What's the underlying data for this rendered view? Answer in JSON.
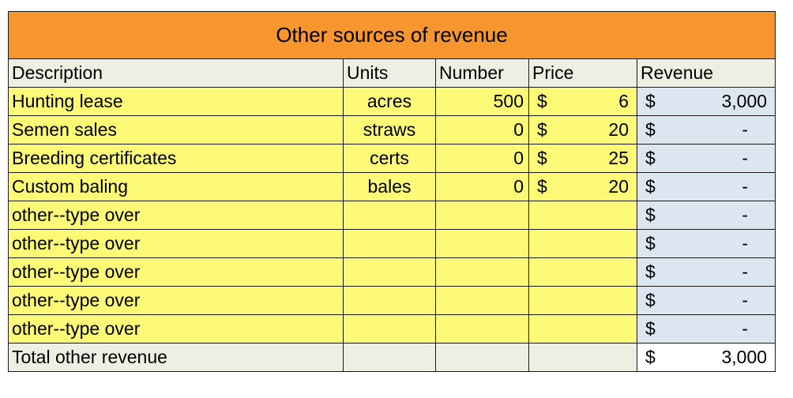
{
  "title": "Other sources of revenue",
  "headers": {
    "description": "Description",
    "units": "Units",
    "number": "Number",
    "price": "Price",
    "revenue": "Revenue"
  },
  "rows": [
    {
      "description": "Hunting lease",
      "units": "acres",
      "number": "500",
      "price_symbol": "$",
      "price": "6",
      "revenue_symbol": "$",
      "revenue": "3,000"
    },
    {
      "description": "Semen sales",
      "units": "straws",
      "number": "0",
      "price_symbol": "$",
      "price": "20",
      "revenue_symbol": "$",
      "revenue": "-"
    },
    {
      "description": "Breeding certificates",
      "units": "certs",
      "number": "0",
      "price_symbol": "$",
      "price": "25",
      "revenue_symbol": "$",
      "revenue": "-"
    },
    {
      "description": "Custom baling",
      "units": "bales",
      "number": "0",
      "price_symbol": "$",
      "price": "20",
      "revenue_symbol": "$",
      "revenue": "-"
    },
    {
      "description": "other--type over",
      "units": "",
      "number": "",
      "price_symbol": "",
      "price": "",
      "revenue_symbol": "$",
      "revenue": "-"
    },
    {
      "description": "other--type over",
      "units": "",
      "number": "",
      "price_symbol": "",
      "price": "",
      "revenue_symbol": "$",
      "revenue": "-"
    },
    {
      "description": "other--type over",
      "units": "",
      "number": "",
      "price_symbol": "",
      "price": "",
      "revenue_symbol": "$",
      "revenue": "-"
    },
    {
      "description": "other--type over",
      "units": "",
      "number": "",
      "price_symbol": "",
      "price": "",
      "revenue_symbol": "$",
      "revenue": "-"
    },
    {
      "description": "other--type over",
      "units": "",
      "number": "",
      "price_symbol": "",
      "price": "",
      "revenue_symbol": "$",
      "revenue": "-"
    }
  ],
  "total": {
    "label": "Total other revenue",
    "revenue_symbol": "$",
    "revenue": "3,000"
  },
  "colors": {
    "title_fill": "#f7962f",
    "header_fill": "#ecefe1",
    "input_fill": "#fdfa77",
    "revenue_fill": "#dce6f0"
  }
}
